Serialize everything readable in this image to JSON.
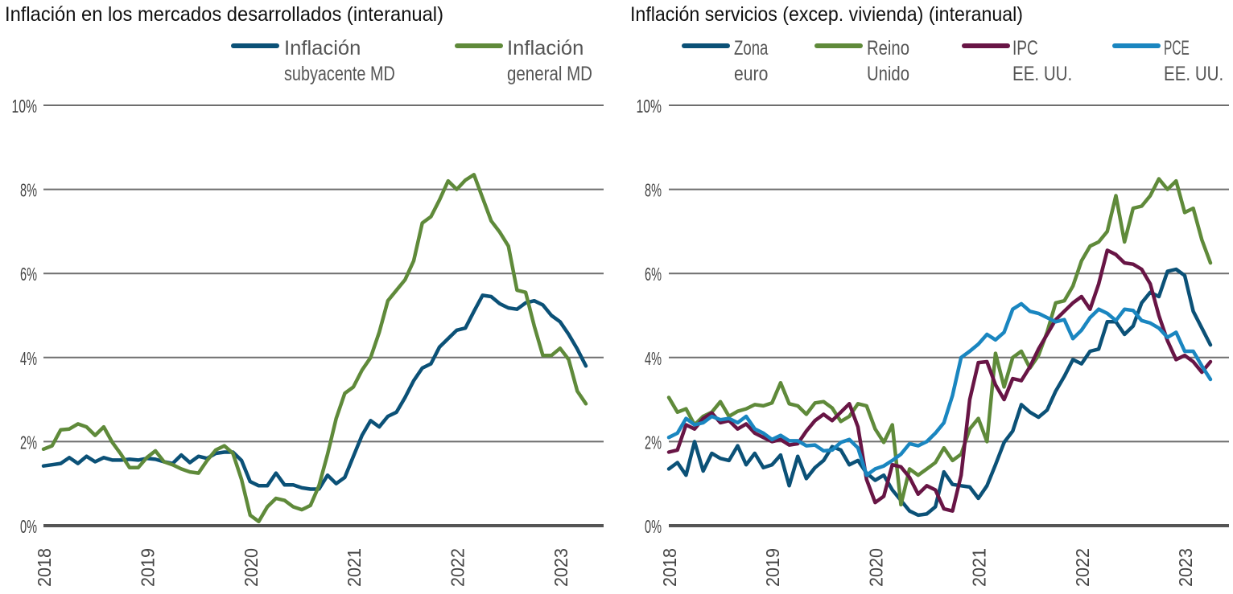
{
  "chart_data": [
    {
      "type": "line",
      "title": "Inflación en los mercados desarrollados (interanual)",
      "x_start": "2018-01",
      "x_frequency": "monthly",
      "x_ticks": [
        "2018",
        "2019",
        "2020",
        "2021",
        "2022",
        "2023"
      ],
      "y_ticks": [
        "0%",
        "2%",
        "4%",
        "6%",
        "8%",
        "10%"
      ],
      "ylim": [
        0,
        10
      ],
      "grid": true,
      "legend_placement": "top-right",
      "series": [
        {
          "name": "Inflación subyacente MD",
          "legend": [
            "Inflación",
            "subyacente MD"
          ],
          "color": "#0b5177",
          "values": [
            1.42,
            1.45,
            1.48,
            1.62,
            1.48,
            1.65,
            1.52,
            1.62,
            1.56,
            1.56,
            1.58,
            1.56,
            1.6,
            1.58,
            1.52,
            1.48,
            1.68,
            1.5,
            1.65,
            1.6,
            1.72,
            1.75,
            1.75,
            1.55,
            1.05,
            0.95,
            0.95,
            1.25,
            0.97,
            0.97,
            0.9,
            0.87,
            0.87,
            1.2,
            1.0,
            1.15,
            1.65,
            2.15,
            2.5,
            2.35,
            2.6,
            2.7,
            3.05,
            3.45,
            3.75,
            3.85,
            4.25,
            4.45,
            4.65,
            4.7,
            5.1,
            5.48,
            5.45,
            5.28,
            5.18,
            5.15,
            5.3,
            5.35,
            5.25,
            5.0,
            4.85,
            4.55,
            4.2,
            3.8
          ]
        },
        {
          "name": "Inflación general MD",
          "legend": [
            "Inflación",
            "general MD"
          ],
          "color": "#5f8a3a",
          "values": [
            1.82,
            1.9,
            2.28,
            2.3,
            2.42,
            2.35,
            2.15,
            2.35,
            1.98,
            1.7,
            1.38,
            1.38,
            1.62,
            1.78,
            1.52,
            1.45,
            1.35,
            1.28,
            1.25,
            1.55,
            1.8,
            1.9,
            1.72,
            1.1,
            0.25,
            0.1,
            0.45,
            0.65,
            0.6,
            0.45,
            0.38,
            0.48,
            0.95,
            1.7,
            2.55,
            3.15,
            3.3,
            3.7,
            4.0,
            4.6,
            5.35,
            5.6,
            5.85,
            6.3,
            7.2,
            7.35,
            7.75,
            8.2,
            8.0,
            8.22,
            8.35,
            7.8,
            7.25,
            6.98,
            6.65,
            5.6,
            5.55,
            4.75,
            4.05,
            4.05,
            4.22,
            3.95,
            3.2,
            2.9
          ]
        }
      ]
    },
    {
      "type": "line",
      "title": "Inflación servicios (excep. vivienda) (interanual)",
      "x_start": "2018-01",
      "x_frequency": "monthly",
      "x_ticks": [
        "2018",
        "2019",
        "2020",
        "2021",
        "2022",
        "2023"
      ],
      "y_ticks": [
        "0%",
        "2%",
        "4%",
        "6%",
        "8%",
        "10%"
      ],
      "ylim": [
        0,
        10
      ],
      "grid": true,
      "legend_placement": "top",
      "series": [
        {
          "name": "Zona euro",
          "legend": [
            "Zona",
            "euro"
          ],
          "color": "#0b5177",
          "values": [
            1.35,
            1.5,
            1.2,
            2.0,
            1.3,
            1.72,
            1.6,
            1.55,
            1.9,
            1.45,
            1.72,
            1.38,
            1.45,
            1.68,
            0.95,
            1.65,
            1.12,
            1.38,
            1.55,
            1.88,
            1.8,
            1.45,
            1.55,
            1.25,
            1.08,
            1.2,
            0.85,
            0.6,
            0.35,
            0.25,
            0.28,
            0.45,
            1.28,
            0.98,
            0.95,
            0.92,
            0.65,
            0.95,
            1.45,
            1.98,
            2.25,
            2.88,
            2.7,
            2.58,
            2.75,
            3.2,
            3.55,
            3.95,
            3.85,
            4.15,
            4.2,
            4.85,
            4.85,
            4.55,
            4.75,
            5.3,
            5.55,
            5.45,
            6.05,
            6.1,
            5.95,
            5.1,
            4.7,
            4.3
          ]
        },
        {
          "name": "Reino Unido",
          "legend": [
            "Reino",
            "Unido"
          ],
          "color": "#5f8a3a",
          "values": [
            3.05,
            2.7,
            2.78,
            2.4,
            2.6,
            2.7,
            2.95,
            2.6,
            2.72,
            2.78,
            2.88,
            2.85,
            2.92,
            3.4,
            2.9,
            2.85,
            2.65,
            2.92,
            2.95,
            2.8,
            2.48,
            2.6,
            2.9,
            2.85,
            2.3,
            1.98,
            2.4,
            0.5,
            1.35,
            1.2,
            1.35,
            1.5,
            1.85,
            1.55,
            1.7,
            2.3,
            2.55,
            2.0,
            4.1,
            3.3,
            4.0,
            4.15,
            3.75,
            4.05,
            4.6,
            5.3,
            5.35,
            5.7,
            6.3,
            6.65,
            6.75,
            7.0,
            7.85,
            6.75,
            7.55,
            7.6,
            7.85,
            8.25,
            8.0,
            8.2,
            7.45,
            7.55,
            6.8,
            6.25
          ]
        },
        {
          "name": "IPC EE. UU.",
          "legend": [
            "IPC",
            "EE. UU."
          ],
          "color": "#681545",
          "values": [
            1.75,
            1.8,
            2.4,
            2.3,
            2.55,
            2.68,
            2.45,
            2.5,
            2.3,
            2.42,
            2.2,
            2.1,
            2.0,
            2.05,
            1.92,
            1.95,
            2.25,
            2.5,
            2.65,
            2.5,
            2.7,
            2.9,
            2.35,
            1.1,
            0.55,
            0.7,
            1.45,
            1.4,
            1.15,
            0.75,
            0.95,
            0.85,
            0.4,
            0.35,
            1.2,
            3.0,
            3.88,
            3.9,
            3.35,
            3.0,
            3.5,
            3.45,
            3.78,
            4.2,
            4.55,
            4.9,
            5.1,
            5.3,
            5.45,
            5.15,
            5.75,
            6.55,
            6.45,
            6.25,
            6.22,
            6.1,
            5.75,
            5.0,
            4.4,
            3.95,
            4.05,
            3.9,
            3.65,
            3.9
          ]
        },
        {
          "name": "PCE EE. UU.",
          "legend": [
            "PCE",
            "EE. UU."
          ],
          "color": "#1a86c0",
          "values": [
            2.1,
            2.2,
            2.55,
            2.4,
            2.45,
            2.6,
            2.52,
            2.55,
            2.45,
            2.6,
            2.3,
            2.2,
            2.05,
            2.15,
            2.02,
            2.02,
            1.9,
            1.92,
            1.78,
            1.8,
            1.98,
            2.05,
            1.85,
            1.2,
            1.35,
            1.42,
            1.55,
            1.7,
            1.95,
            1.9,
            2.0,
            2.2,
            2.45,
            3.1,
            4.0,
            4.15,
            4.32,
            4.55,
            4.42,
            4.6,
            5.15,
            5.28,
            5.1,
            5.05,
            4.95,
            4.85,
            4.9,
            4.45,
            4.65,
            4.95,
            5.15,
            5.05,
            4.88,
            5.15,
            5.12,
            4.88,
            4.82,
            4.7,
            4.48,
            4.6,
            4.15,
            4.15,
            3.8,
            3.48
          ]
        }
      ]
    }
  ]
}
